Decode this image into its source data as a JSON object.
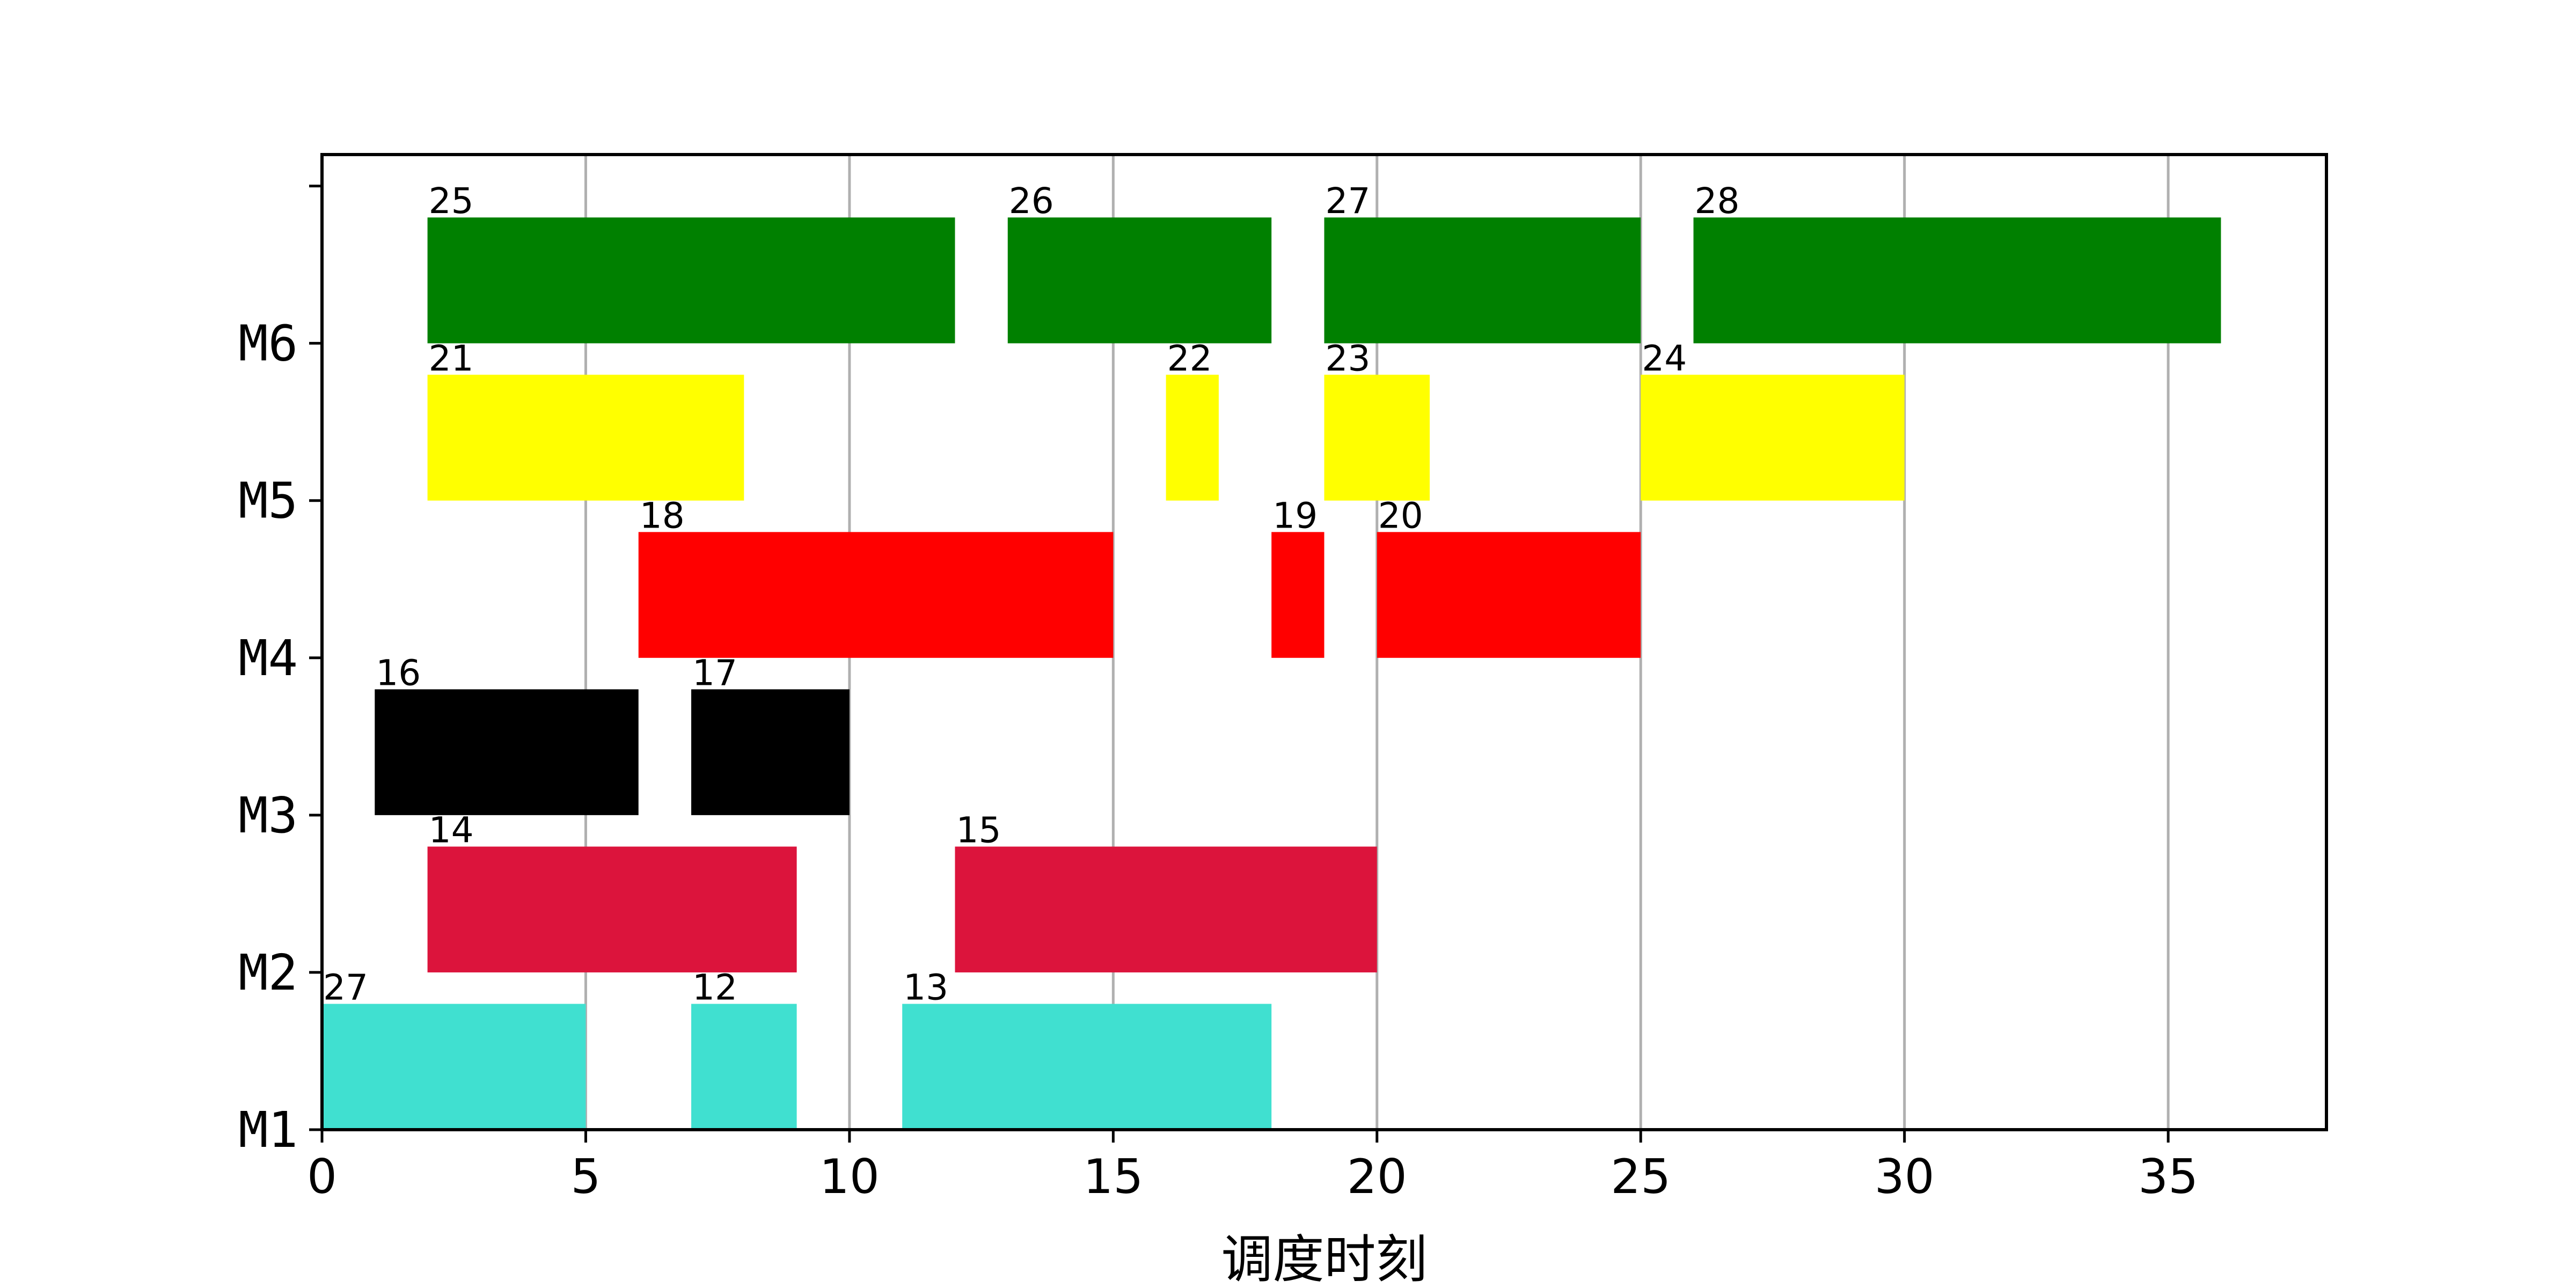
{
  "chart_data": {
    "type": "gantt",
    "xlabel": "调度时刻",
    "ylabel": "",
    "xlim": [
      0,
      38
    ],
    "xticks": [
      0,
      5,
      10,
      15,
      20,
      25,
      30,
      35
    ],
    "ylim": [
      0,
      6.2
    ],
    "yticks": [
      {
        "value": 0,
        "label": "M1"
      },
      {
        "value": 1,
        "label": "M2"
      },
      {
        "value": 2,
        "label": "M3"
      },
      {
        "value": 3,
        "label": "M4"
      },
      {
        "value": 4,
        "label": "M5"
      },
      {
        "value": 5,
        "label": "M6"
      },
      {
        "value": 6,
        "label": ""
      }
    ],
    "grid": "vertical",
    "bar_height": 0.8,
    "rows": [
      {
        "y": 0,
        "color": "#40E0D0",
        "tasks": [
          {
            "label": "27",
            "start": 0,
            "end": 5
          },
          {
            "label": "12",
            "start": 7,
            "end": 9
          },
          {
            "label": "13",
            "start": 11,
            "end": 18
          }
        ]
      },
      {
        "y": 1,
        "color": "#DC143C",
        "tasks": [
          {
            "label": "14",
            "start": 2,
            "end": 9
          },
          {
            "label": "15",
            "start": 12,
            "end": 20
          }
        ]
      },
      {
        "y": 2,
        "color": "#000000",
        "tasks": [
          {
            "label": "16",
            "start": 1,
            "end": 6
          },
          {
            "label": "17",
            "start": 7,
            "end": 10
          }
        ]
      },
      {
        "y": 3,
        "color": "#FF0000",
        "tasks": [
          {
            "label": "18",
            "start": 6,
            "end": 15
          },
          {
            "label": "19",
            "start": 18,
            "end": 19
          },
          {
            "label": "20",
            "start": 20,
            "end": 25
          }
        ]
      },
      {
        "y": 4,
        "color": "#FFFF00",
        "tasks": [
          {
            "label": "21",
            "start": 2,
            "end": 8
          },
          {
            "label": "22",
            "start": 16,
            "end": 17
          },
          {
            "label": "23",
            "start": 19,
            "end": 21
          },
          {
            "label": "24",
            "start": 25,
            "end": 30
          }
        ]
      },
      {
        "y": 5,
        "color": "#008000",
        "tasks": [
          {
            "label": "25",
            "start": 2,
            "end": 12
          },
          {
            "label": "26",
            "start": 13,
            "end": 18
          },
          {
            "label": "27",
            "start": 19,
            "end": 25
          },
          {
            "label": "28",
            "start": 26,
            "end": 36
          }
        ]
      }
    ]
  }
}
